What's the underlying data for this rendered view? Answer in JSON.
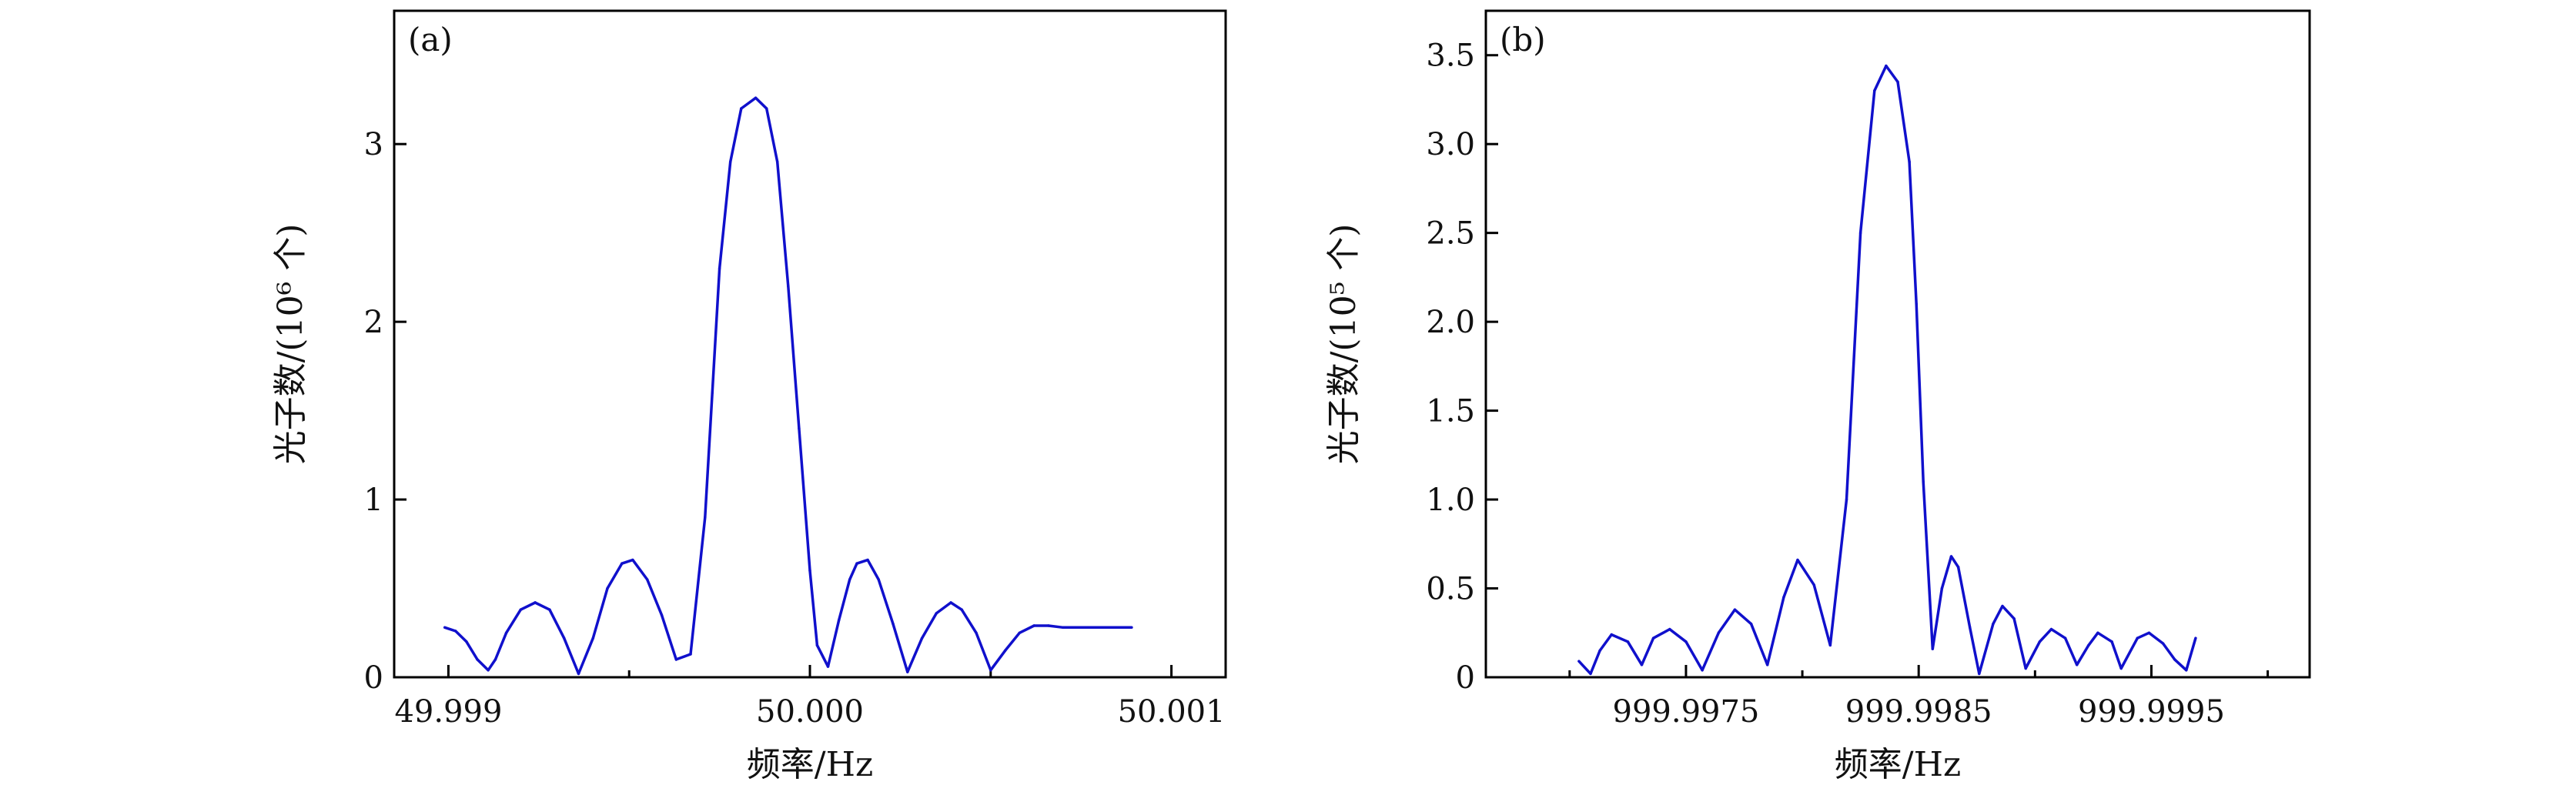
{
  "chart_data": [
    {
      "type": "line",
      "panel_label": "(a)",
      "xlabel": "频率/Hz",
      "ylabel": "光子数/(10⁶ 个)",
      "xlim": [
        49.99885,
        50.00115
      ],
      "ylim": [
        0,
        3.75
      ],
      "xticks": [
        {
          "value": 49.999,
          "label": "49.999"
        },
        {
          "value": 50.0,
          "label": "50.000"
        },
        {
          "value": 50.001,
          "label": "50.001"
        }
      ],
      "yticks": [
        {
          "value": 0,
          "label": "0"
        },
        {
          "value": 1,
          "label": "1"
        },
        {
          "value": 2,
          "label": "2"
        },
        {
          "value": 3,
          "label": "3"
        }
      ],
      "minor_xticks": [
        49.9995,
        50.0005
      ],
      "line_color": "#1010cc",
      "grid": false,
      "series": [
        {
          "x": [
            49.99899,
            49.99902,
            49.99905,
            49.99908,
            49.99911,
            49.99913,
            49.99916,
            49.9992,
            49.99924,
            49.99928,
            49.99932,
            49.99936,
            49.9994,
            49.99944,
            49.99948,
            49.99951,
            49.99955,
            49.99959,
            49.99963,
            49.99967,
            49.99971,
            49.99973,
            49.99975,
            49.99978,
            49.99981,
            49.99985,
            49.99988,
            49.99991,
            49.99994,
            49.99997,
            50.0,
            50.00002,
            50.00005,
            50.00008,
            50.00011,
            50.00013,
            50.00016,
            50.00019,
            50.00023,
            50.00027,
            50.00031,
            50.00035,
            50.00039,
            50.00042,
            50.00046,
            50.0005,
            50.00054,
            50.00058,
            50.00062,
            50.00066,
            50.0007,
            50.00073,
            50.00077,
            50.00081,
            50.00085,
            50.00089
          ],
          "y": [
            0.28,
            0.26,
            0.2,
            0.1,
            0.04,
            0.1,
            0.25,
            0.38,
            0.42,
            0.38,
            0.22,
            0.02,
            0.22,
            0.5,
            0.64,
            0.66,
            0.55,
            0.35,
            0.1,
            0.13,
            0.9,
            1.6,
            2.3,
            2.9,
            3.2,
            3.26,
            3.2,
            2.9,
            2.2,
            1.4,
            0.6,
            0.18,
            0.06,
            0.32,
            0.55,
            0.64,
            0.66,
            0.55,
            0.3,
            0.03,
            0.22,
            0.36,
            0.42,
            0.38,
            0.25,
            0.04,
            0.15,
            0.25,
            0.29,
            0.29,
            0.28,
            0.28,
            0.28,
            0.28,
            0.28,
            0.28
          ]
        }
      ]
    },
    {
      "type": "line",
      "panel_label": "(b)",
      "xlabel": "频率/Hz",
      "ylabel": "光子数/(10⁵ 个)",
      "xlim": [
        999.99664,
        1000.00018
      ],
      "ylim": [
        0,
        3.75
      ],
      "xticks": [
        {
          "value": 999.9975,
          "label": "999.9975"
        },
        {
          "value": 999.9985,
          "label": "999.9985"
        },
        {
          "value": 999.9995,
          "label": "999.9995"
        }
      ],
      "yticks": [
        {
          "value": 0,
          "label": "0"
        },
        {
          "value": 0.5,
          "label": "0.5"
        },
        {
          "value": 1.0,
          "label": "1.0"
        },
        {
          "value": 1.5,
          "label": "1.5"
        },
        {
          "value": 2.0,
          "label": "2.0"
        },
        {
          "value": 2.5,
          "label": "2.5"
        },
        {
          "value": 3.0,
          "label": "3.0"
        },
        {
          "value": 3.5,
          "label": "3.5"
        }
      ],
      "minor_xticks": [
        999.997,
        999.998,
        999.999,
        1000.0
      ],
      "line_color": "#1010cc",
      "grid": false,
      "series": [
        {
          "x": [
            999.99704,
            999.99709,
            999.99713,
            999.99718,
            999.99725,
            999.99731,
            999.99736,
            999.99743,
            999.9975,
            999.99757,
            999.99764,
            999.99771,
            999.99778,
            999.99785,
            999.99792,
            999.99798,
            999.99805,
            999.99812,
            999.99819,
            999.99825,
            999.99831,
            999.99836,
            999.99841,
            999.99846,
            999.99849,
            999.99852,
            999.99856,
            999.9986,
            999.99864,
            999.99867,
            999.99872,
            999.99876,
            999.99882,
            999.99886,
            999.99891,
            999.99896,
            999.99902,
            999.99907,
            999.99913,
            999.99918,
            999.99923,
            999.99927,
            999.99933,
            999.99937,
            999.99944,
            999.99949,
            999.99955,
            999.9996,
            999.99965,
            999.99969
          ],
          "y": [
            0.09,
            0.02,
            0.15,
            0.24,
            0.2,
            0.07,
            0.22,
            0.27,
            0.2,
            0.04,
            0.25,
            0.38,
            0.3,
            0.07,
            0.45,
            0.66,
            0.52,
            0.18,
            1.0,
            2.5,
            3.3,
            3.44,
            3.35,
            2.9,
            2.1,
            1.1,
            0.16,
            0.5,
            0.68,
            0.62,
            0.28,
            0.02,
            0.3,
            0.4,
            0.33,
            0.05,
            0.2,
            0.27,
            0.22,
            0.07,
            0.18,
            0.25,
            0.2,
            0.05,
            0.22,
            0.25,
            0.19,
            0.1,
            0.04,
            0.22
          ]
        }
      ]
    }
  ]
}
